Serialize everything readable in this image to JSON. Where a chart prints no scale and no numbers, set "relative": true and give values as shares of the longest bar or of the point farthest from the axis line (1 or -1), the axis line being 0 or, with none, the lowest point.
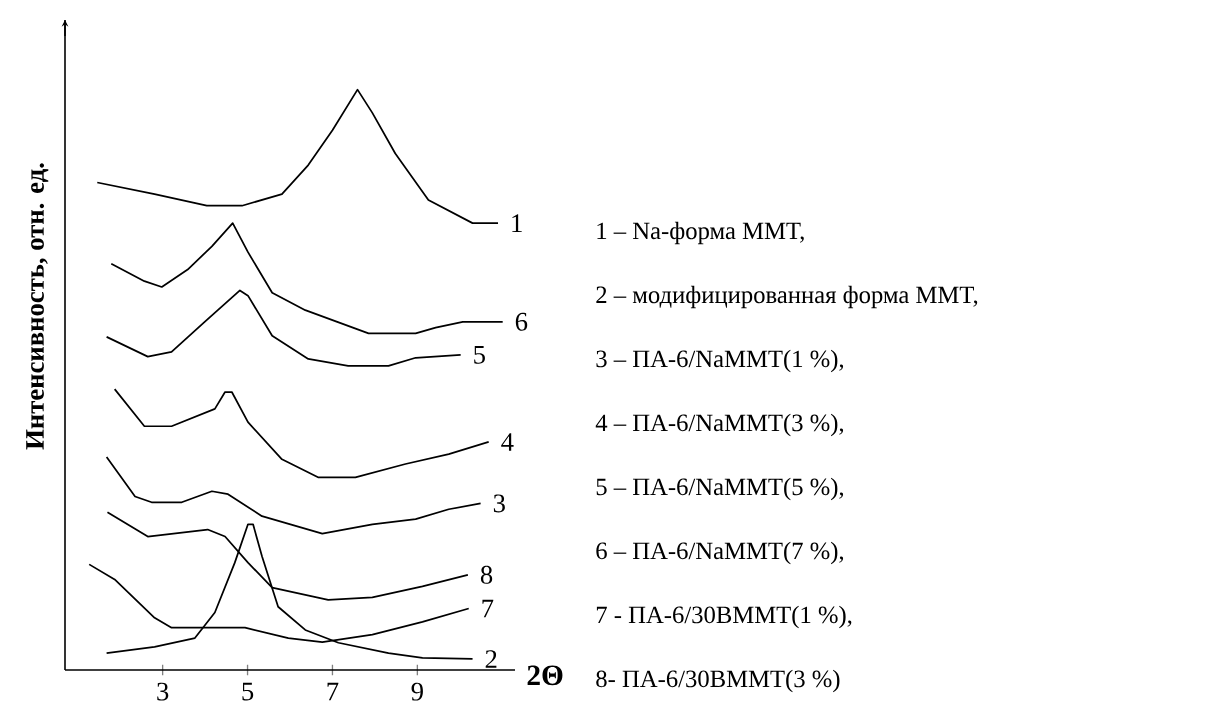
{
  "chart_data": {
    "type": "line",
    "relative": true,
    "xlabel": "2Θ",
    "ylabel": "Интенсивность, отн. ед.",
    "xlim": [
      0.7,
      11.3
    ],
    "xticks": [
      3,
      5,
      7,
      9
    ],
    "series": [
      {
        "name": "1",
        "color": "#000000",
        "x": [
          1.46,
          2.81,
          4.04,
          4.87,
          5.81,
          6.43,
          7.0,
          7.59,
          7.94,
          8.48,
          9.26,
          10.3,
          10.9
        ],
        "values": [
          0.84,
          0.82,
          0.8,
          0.8,
          0.82,
          0.87,
          0.93,
          1.0,
          0.96,
          0.89,
          0.81,
          0.77,
          0.77
        ]
      },
      {
        "name": "2",
        "color": "#000000",
        "x": [
          1.68,
          2.81,
          3.76,
          4.23,
          4.7,
          5.01,
          5.13,
          5.34,
          5.72,
          6.36,
          7.14,
          8.32,
          9.12,
          10.3
        ],
        "values": [
          0.029,
          0.04,
          0.055,
          0.099,
          0.185,
          0.251,
          0.251,
          0.196,
          0.109,
          0.069,
          0.047,
          0.029,
          0.021,
          0.019
        ]
      },
      {
        "name": "3",
        "color": "#000000",
        "x": [
          1.68,
          2.35,
          2.74,
          3.45,
          4.16,
          4.54,
          5.34,
          6.76,
          7.94,
          8.96,
          9.74,
          10.49
        ],
        "values": [
          0.367,
          0.299,
          0.289,
          0.289,
          0.308,
          0.303,
          0.265,
          0.235,
          0.251,
          0.26,
          0.277,
          0.287
        ]
      },
      {
        "name": "4",
        "color": "#000000",
        "x": [
          1.87,
          2.57,
          3.21,
          4.23,
          4.47,
          4.63,
          5.01,
          5.81,
          6.66,
          7.54,
          8.72,
          9.74,
          10.68
        ],
        "values": [
          0.484,
          0.42,
          0.42,
          0.45,
          0.479,
          0.479,
          0.427,
          0.363,
          0.332,
          0.332,
          0.355,
          0.372,
          0.393
        ]
      },
      {
        "name": "5",
        "color": "#000000",
        "x": [
          1.68,
          2.65,
          3.21,
          3.99,
          4.82,
          5.01,
          5.58,
          6.43,
          7.37,
          8.32,
          8.96,
          10.02
        ],
        "values": [
          0.574,
          0.54,
          0.548,
          0.6,
          0.654,
          0.645,
          0.576,
          0.536,
          0.524,
          0.524,
          0.538,
          0.543
        ]
      },
      {
        "name": "6",
        "color": "#000000",
        "x": [
          1.79,
          2.57,
          2.98,
          3.59,
          4.16,
          4.65,
          5.01,
          5.58,
          6.36,
          7.85,
          8.96,
          9.43,
          10.07,
          11.01
        ],
        "values": [
          0.7,
          0.67,
          0.66,
          0.69,
          0.73,
          0.77,
          0.72,
          0.65,
          0.62,
          0.58,
          0.58,
          0.59,
          0.6,
          0.6
        ]
      },
      {
        "name": "7",
        "color": "#000000",
        "x": [
          1.27,
          1.87,
          2.81,
          3.21,
          4.16,
          4.94,
          5.96,
          6.76,
          7.94,
          9.12,
          10.21
        ],
        "values": [
          0.182,
          0.156,
          0.09,
          0.073,
          0.073,
          0.073,
          0.055,
          0.048,
          0.061,
          0.083,
          0.106
        ]
      },
      {
        "name": "8",
        "color": "#000000",
        "x": [
          1.7,
          2.65,
          4.06,
          4.47,
          5.01,
          5.58,
          6.9,
          7.94,
          9.12,
          10.19
        ],
        "values": [
          0.272,
          0.23,
          0.242,
          0.23,
          0.185,
          0.142,
          0.121,
          0.125,
          0.144,
          0.164
        ]
      }
    ],
    "annotations": [
      "1 – Na-форма MMT,",
      "2 – модифицированная форма MMT,",
      "3 – ПА-6/NaMMT(1 %),",
      "4 – ПА-6/NaMMT(3 %),",
      "5 – ПА-6/NaMMT(5 %),",
      "6 – ПА-6/NaMMT(7 %),",
      "7 -  ПА-6/30BMMT(1 %),",
      "8- ПА-6/30BMMT(3 %)"
    ]
  }
}
